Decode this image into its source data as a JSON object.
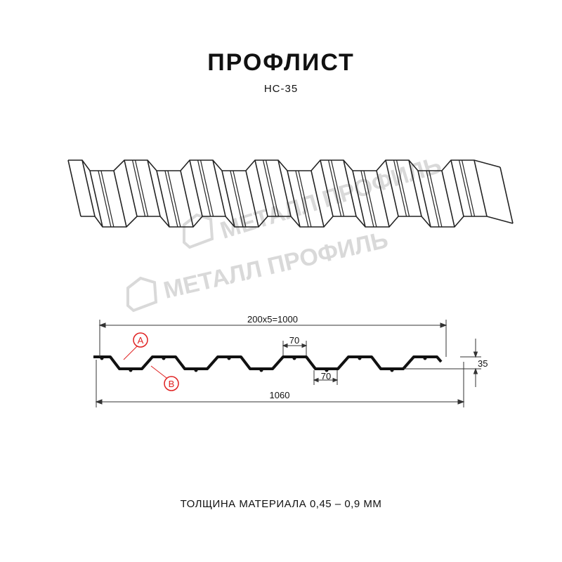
{
  "title": "ПРОФЛИСТ",
  "subtitle": "НС-35",
  "watermark": "МЕТАЛЛ ПРОФИЛЬ",
  "dimensions": {
    "pitch_total": "200x5=1000",
    "total_width": "1060",
    "crest_width": "70",
    "valley_width": "70",
    "height": "35"
  },
  "markers": {
    "a": "A",
    "b": "B"
  },
  "footer": "ТОЛЩИНА МАТЕРИАЛА 0,45 – 0,9 ММ",
  "colors": {
    "line": "#111111",
    "marker": "#e02020",
    "watermark": "#d0d0d0"
  }
}
